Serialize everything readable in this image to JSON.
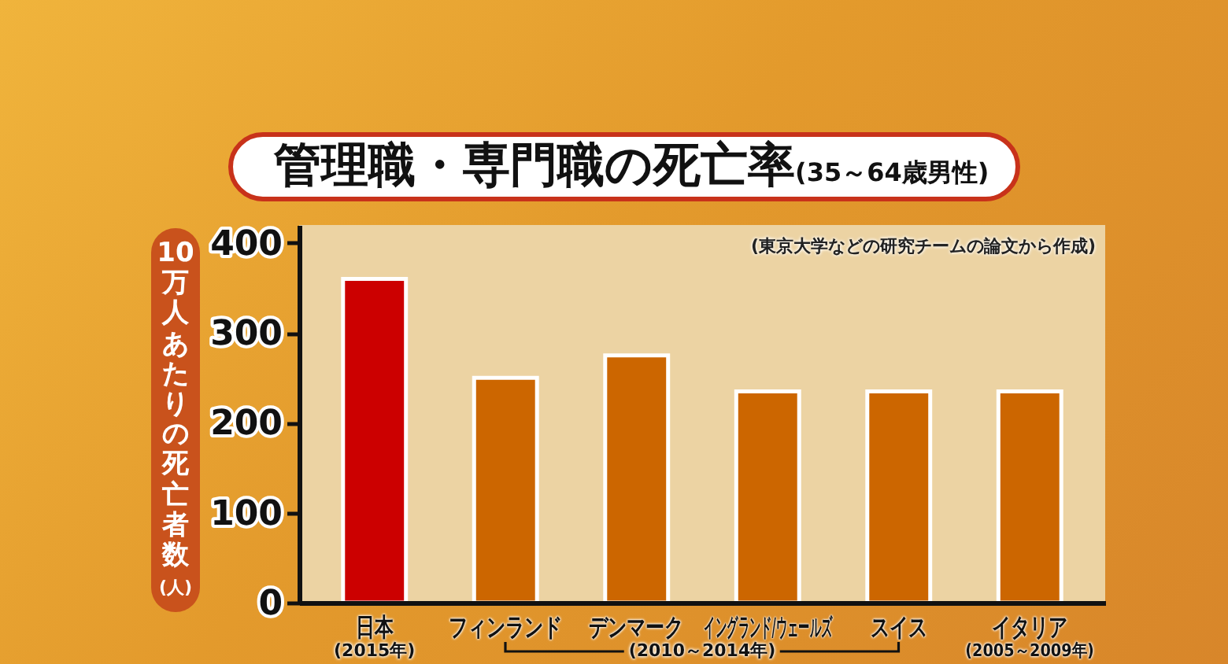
{
  "chart_data": {
    "type": "bar",
    "title": "管理職・専門職の死亡率",
    "subtitle": "(35～64歳男性)",
    "ylabel": "10万人あたりの死亡者数(人)",
    "categories": [
      "日本",
      "フィンランド",
      "デンマーク",
      "イングランド/ウェールズ",
      "スイス",
      "イタリア"
    ],
    "values": [
      360,
      250,
      275,
      235,
      235,
      235
    ],
    "colors": [
      "#cc0000",
      "#cc6600",
      "#cc6600",
      "#cc6600",
      "#cc6600",
      "#cc6600"
    ],
    "ylim": [
      0,
      420
    ],
    "yticks": [
      0,
      100,
      200,
      300,
      400
    ],
    "annotations": [
      "(東京大学などの研究チームの論文から作成)",
      "(2015年)",
      "(2010～2014年)",
      "(2005～2009年)"
    ]
  }
}
